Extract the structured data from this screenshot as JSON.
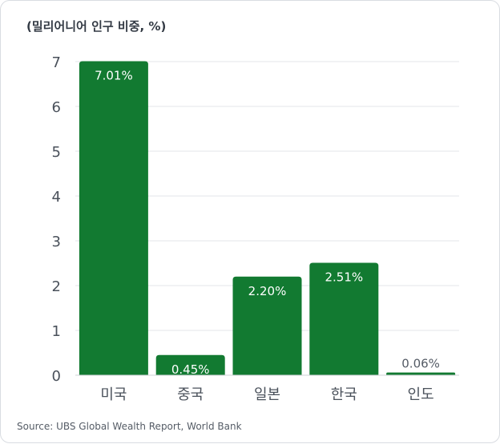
{
  "chart_data": {
    "type": "bar",
    "ylabel": "(밀리어니어 인구 비중, %)",
    "categories": [
      "미국",
      "중국",
      "일본",
      "한국",
      "인도"
    ],
    "values": [
      7.01,
      0.45,
      2.2,
      2.51,
      0.06
    ],
    "value_labels": [
      "7.01%",
      "0.45%",
      "2.20%",
      "2.51%",
      "0.06%"
    ],
    "yticks": [
      "0",
      "1",
      "2",
      "3",
      "4",
      "5",
      "6",
      "7"
    ],
    "ylim": [
      0,
      7
    ],
    "grid": true,
    "bar_color": "#127a31",
    "label_inside_color": "#ffffff",
    "label_outside_color": "#555c66"
  },
  "source": "Source: UBS Global Wealth Report, World Bank"
}
